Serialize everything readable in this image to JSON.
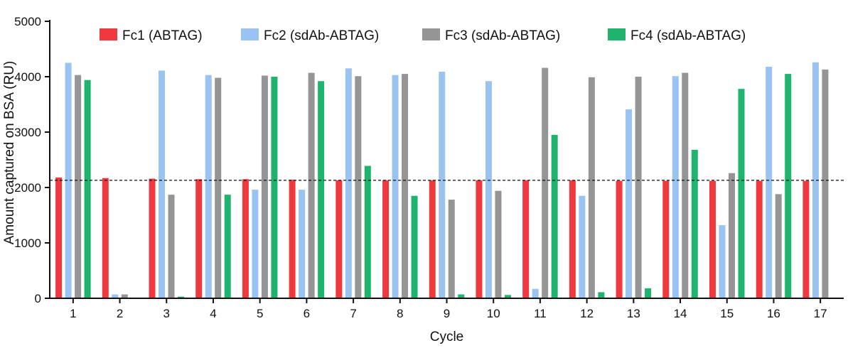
{
  "chart_data": {
    "type": "bar",
    "title": "",
    "xlabel": "Cycle",
    "ylabel": "Amount captured on BSA (RU)",
    "ylim": [
      0,
      5000
    ],
    "yticks": [
      0,
      1000,
      2000,
      3000,
      4000,
      5000
    ],
    "categories": [
      "1",
      "2",
      "3",
      "4",
      "5",
      "6",
      "7",
      "8",
      "9",
      "10",
      "11",
      "12",
      "13",
      "14",
      "15",
      "16",
      "17"
    ],
    "series": [
      {
        "name": "Fc1 (ABTAG)",
        "color": "#f0393f",
        "values": [
          2180,
          2170,
          2160,
          2150,
          2150,
          2140,
          2130,
          2130,
          2130,
          2130,
          2130,
          2130,
          2120,
          2120,
          2120,
          2120,
          2120
        ]
      },
      {
        "name": "Fc2 (sdAb-ABTAG)",
        "color": "#9ac3f2",
        "values": [
          4250,
          70,
          4110,
          4030,
          1960,
          1960,
          4150,
          4030,
          4090,
          3920,
          170,
          1850,
          3410,
          4010,
          1320,
          4180,
          4260
        ]
      },
      {
        "name": "Fc3 (sdAb-ABTAG)",
        "color": "#959595",
        "values": [
          4030,
          70,
          1870,
          3980,
          4020,
          4070,
          4010,
          4050,
          1780,
          1940,
          4160,
          3990,
          4000,
          4070,
          2260,
          1880,
          4130
        ]
      },
      {
        "name": "Fc4 (sdAb-ABTAG)",
        "color": "#1fb46e",
        "values": [
          3940,
          0,
          30,
          1870,
          4000,
          3920,
          2390,
          1850,
          70,
          60,
          2950,
          110,
          180,
          2680,
          3780,
          4050,
          0
        ]
      }
    ],
    "reference_line": {
      "value": 2130,
      "style": "dashed"
    },
    "legend_position": "top"
  }
}
